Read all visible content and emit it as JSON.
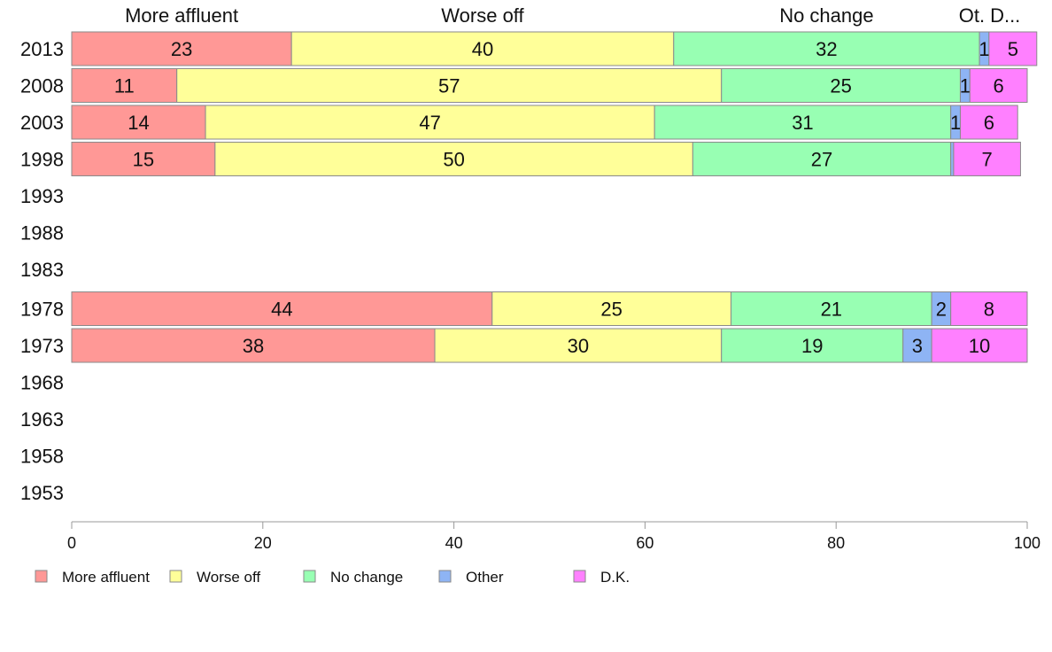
{
  "chart_data": {
    "type": "bar",
    "orientation": "horizontal",
    "stacked": true,
    "categories": [
      "2013",
      "2008",
      "2003",
      "1998",
      "1993",
      "1988",
      "1983",
      "1978",
      "1973",
      "1968",
      "1963",
      "1958",
      "1953"
    ],
    "series": [
      {
        "name": "More affluent",
        "color": "#ff9896",
        "values": [
          23,
          11,
          14,
          15,
          null,
          null,
          null,
          44,
          38,
          null,
          null,
          null,
          null
        ]
      },
      {
        "name": "Worse off",
        "color": "#ffff99",
        "values": [
          40,
          57,
          47,
          50,
          null,
          null,
          null,
          25,
          30,
          null,
          null,
          null,
          null
        ]
      },
      {
        "name": "No change",
        "color": "#98ffb3",
        "values": [
          32,
          25,
          31,
          27,
          null,
          null,
          null,
          21,
          19,
          null,
          null,
          null,
          null
        ]
      },
      {
        "name": "Other",
        "color": "#8eb4f4",
        "values": [
          1,
          1,
          1,
          0.3,
          null,
          null,
          null,
          2,
          3,
          null,
          null,
          null,
          null
        ]
      },
      {
        "name": "D.K.",
        "color": "#ff80ff",
        "values": [
          5,
          6,
          6,
          7,
          null,
          null,
          null,
          8,
          10,
          null,
          null,
          null,
          null
        ]
      }
    ],
    "data_labels": [
      [
        "23",
        "40",
        "32",
        "1",
        "5"
      ],
      [
        "11",
        "57",
        "25",
        "1",
        "6"
      ],
      [
        "14",
        "47",
        "31",
        "1",
        "6"
      ],
      [
        "15",
        "50",
        "27",
        "",
        "7"
      ],
      null,
      null,
      null,
      [
        "44",
        "25",
        "21",
        "2",
        "8"
      ],
      [
        "38",
        "30",
        "19",
        "3",
        "10"
      ],
      null,
      null,
      null,
      null
    ],
    "column_headers": [
      "More affluent",
      "Worse off",
      "No change",
      "Ot.",
      "D..."
    ],
    "x_ticks": [
      "0",
      "20",
      "40",
      "60",
      "80",
      "100"
    ],
    "xlim": [
      0,
      100
    ],
    "grid": false,
    "legend_position": "bottom"
  }
}
